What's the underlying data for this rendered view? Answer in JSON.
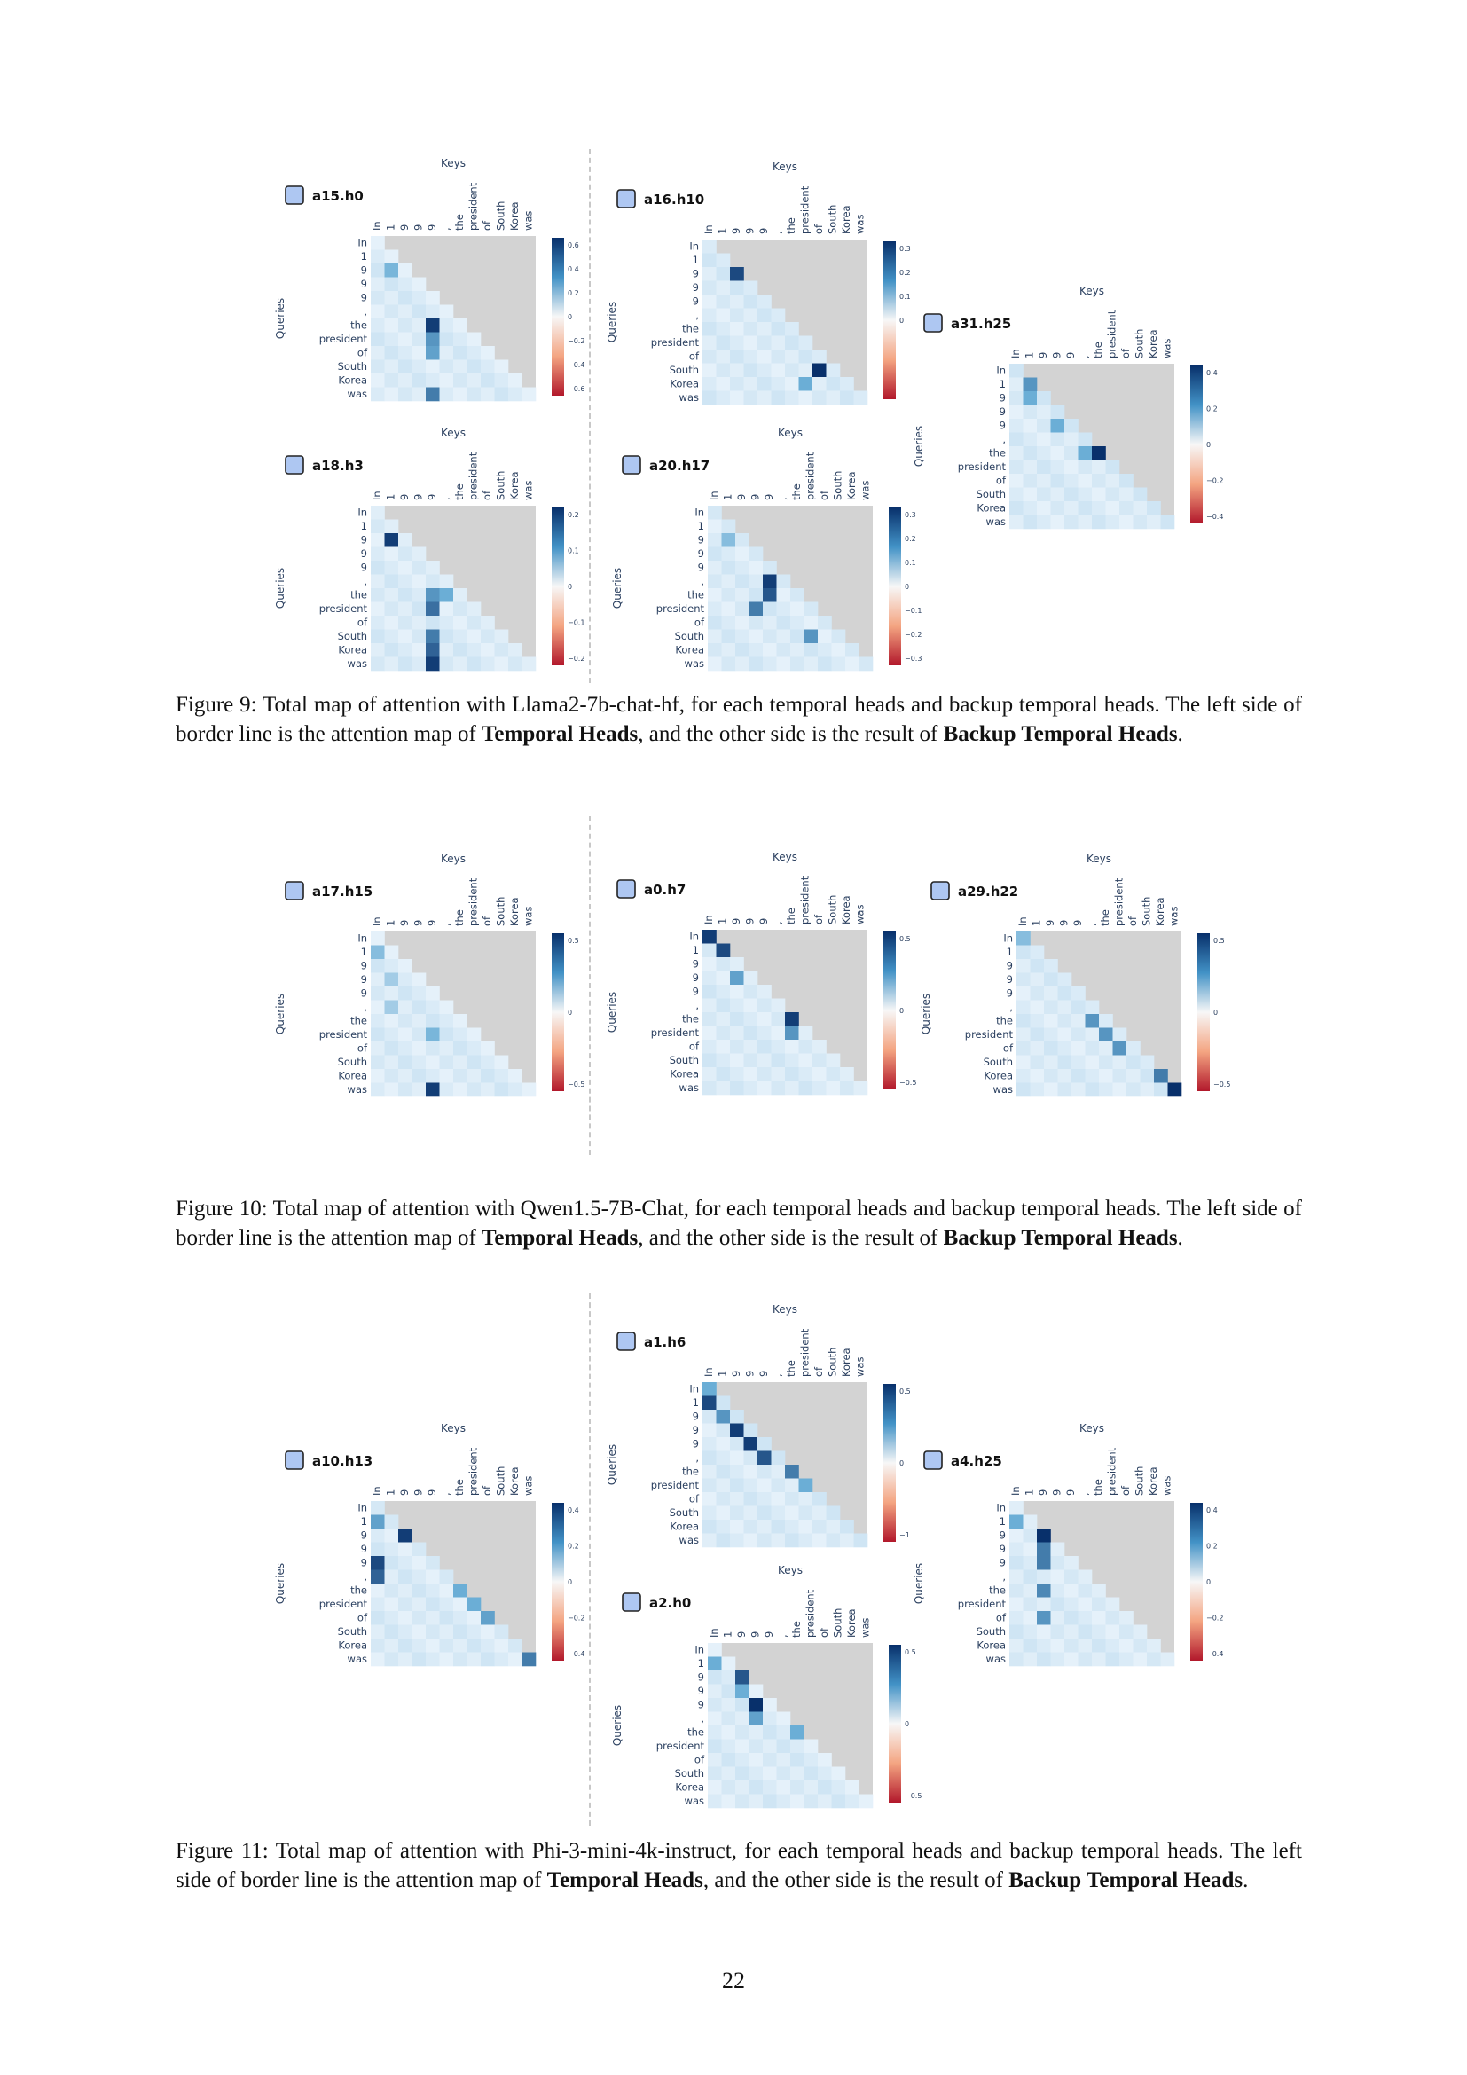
{
  "tokens": [
    "In",
    "1",
    "9",
    "9",
    "9",
    ",",
    "the",
    "president",
    "of",
    "South",
    "Korea",
    "was"
  ],
  "axis": {
    "keys": "Keys",
    "queries": "Queries"
  },
  "figures": [
    {
      "caption": {
        "number": "Figure 9:",
        "text1": "Total map of attention with Llama2-7b-chat-hf, for each temporal heads and backup temporal heads. The left side of border line is the attention map of",
        "bold1": "Temporal Heads",
        "text2": ", and the other side is the result of",
        "bold2": "Backup Temporal Heads",
        "text3": "."
      },
      "heads": [
        {
          "label": "a15.h0",
          "ticks": [
            "0.6",
            "0.4",
            "0.2",
            "0",
            "−0.2",
            "−0.4",
            "−0.6"
          ]
        },
        {
          "label": "a18.h3",
          "ticks": [
            "0.2",
            "0.1",
            "0",
            "−0.1",
            "−0.2"
          ]
        },
        {
          "label": "a16.h10",
          "ticks": [
            "0.3",
            "0.2",
            "0.1",
            "0",
            "",
            "",
            ""
          ]
        },
        {
          "label": "a20.h17",
          "ticks": [
            "0.3",
            "0.2",
            "0.1",
            "0",
            "−0.1",
            "−0.2",
            "−0.3"
          ]
        },
        {
          "label": "a31.h25",
          "ticks": [
            "0.4",
            "0.2",
            "0",
            "−0.2",
            "−0.4"
          ]
        }
      ]
    },
    {
      "caption": {
        "number": "Figure 10:",
        "text1": "Total map of attention with Qwen1.5-7B-Chat, for each temporal heads and backup temporal heads. The left side of border line is the attention map of",
        "bold1": "Temporal Heads",
        "text2": ", and the other side is the result of",
        "bold2": "Backup Temporal Heads",
        "text3": "."
      },
      "heads": [
        {
          "label": "a17.h15",
          "ticks": [
            "0.5",
            "0",
            "−0.5"
          ]
        },
        {
          "label": "a0.h7",
          "ticks": [
            "0.5",
            "0",
            "−0.5"
          ]
        },
        {
          "label": "a29.h22",
          "ticks": [
            "0.5",
            "0",
            "−0.5"
          ]
        }
      ]
    },
    {
      "caption": {
        "number": "Figure 11:",
        "text1": "Total map of attention with Phi-3-mini-4k-instruct, for each temporal heads and backup temporal heads. The left side of border line is the attention map of",
        "bold1": "Temporal Heads",
        "text2": ", and the other side is the result of",
        "bold2": "Backup Temporal Heads",
        "text3": "."
      },
      "heads": [
        {
          "label": "a10.h13",
          "ticks": [
            "0.4",
            "0.2",
            "0",
            "−0.2",
            "−0.4"
          ]
        },
        {
          "label": "a1.h6",
          "ticks": [
            "0.5",
            "0",
            "−1"
          ]
        },
        {
          "label": "a2.h0",
          "ticks": [
            "0.5",
            "0",
            "−0.5"
          ]
        },
        {
          "label": "a4.h25",
          "ticks": [
            "0.4",
            "0.2",
            "0",
            "−0.2",
            "−0.4"
          ]
        }
      ]
    }
  ],
  "page_number": "22"
}
